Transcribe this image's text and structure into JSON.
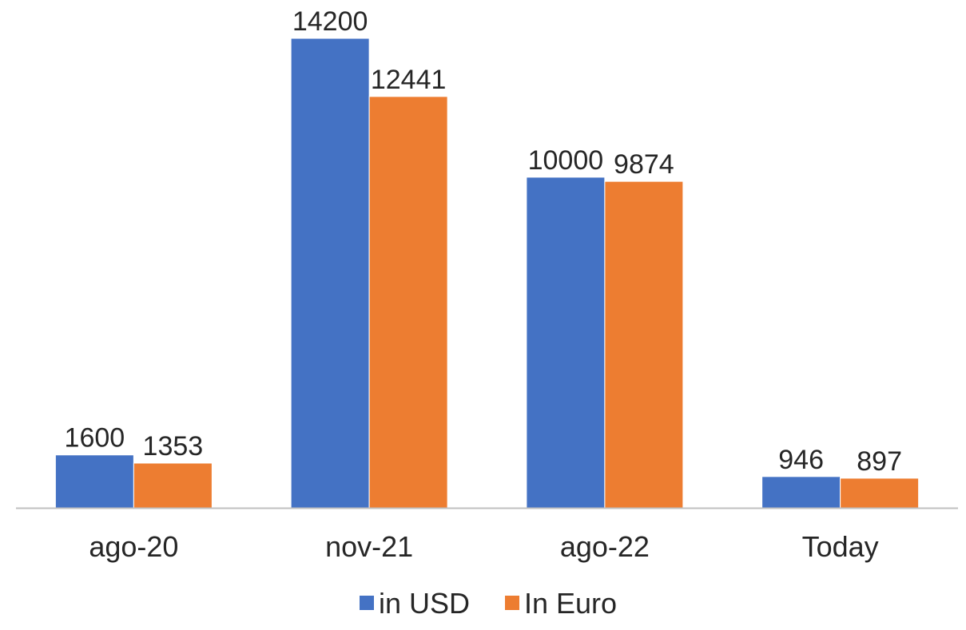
{
  "chart_data": {
    "type": "bar",
    "categories": [
      "ago-20",
      "nov-21",
      "ago-22",
      "Today"
    ],
    "series": [
      {
        "name": "in USD",
        "values": [
          1600,
          14200,
          10000,
          946
        ],
        "color": "#4472C4"
      },
      {
        "name": "In Euro",
        "values": [
          1353,
          12441,
          9874,
          897
        ],
        "color": "#ED7D31"
      }
    ],
    "title": "",
    "xlabel": "",
    "ylabel": "",
    "ylim": [
      0,
      14200
    ],
    "grid": false,
    "legend": "bottom",
    "data_labels": true,
    "axis_color": "#BFBFBF"
  }
}
